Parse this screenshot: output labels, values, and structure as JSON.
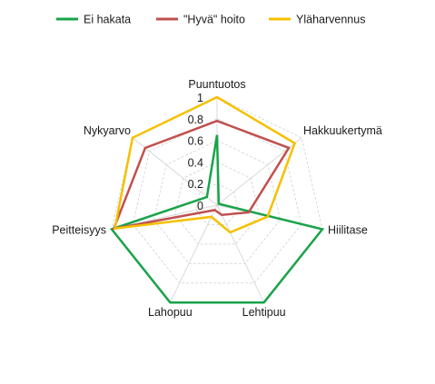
{
  "chart_data": {
    "type": "radar",
    "categories": [
      "Puuntuotos",
      "Hakkuukertymä",
      "Hiilitase",
      "Lehtipuu",
      "Lahopuu",
      "Peitteisyys",
      "Nykyarvo"
    ],
    "series": [
      {
        "name": "Ei hakata",
        "color": "#1aa34a",
        "values": [
          0.65,
          0.02,
          1.0,
          1.0,
          1.0,
          1.0,
          0.12
        ]
      },
      {
        "name": "\"Hyvä\" hoito",
        "color": "#c0504d",
        "values": [
          0.78,
          0.85,
          0.3,
          0.1,
          0.05,
          0.98,
          0.85
        ]
      },
      {
        "name": "Yläharvennus",
        "color": "#f5c000",
        "values": [
          1.0,
          0.92,
          0.48,
          0.28,
          0.12,
          0.97,
          1.0
        ]
      }
    ],
    "ticks": [
      "0",
      "0.2",
      "0.4",
      "0.6",
      "0.8",
      "1"
    ],
    "rlim": [
      0,
      1
    ],
    "legend_position": "top",
    "grid": true
  }
}
